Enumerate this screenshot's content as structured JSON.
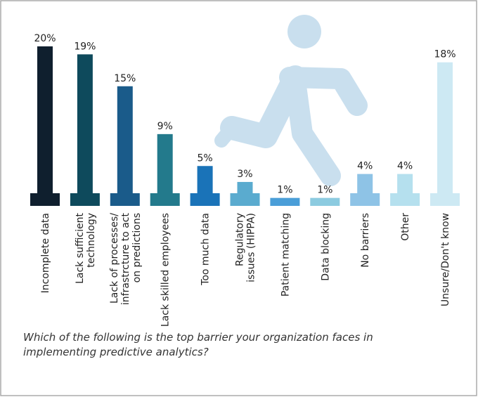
{
  "chart_data": {
    "type": "bar",
    "title": "Which of the following is the top barrier your organization faces in implementing predictive analytics?",
    "categories": [
      [
        "Incomplete data"
      ],
      [
        "Lack sufficient",
        "technology"
      ],
      [
        "Lack of processes/",
        "infrastrcture to act",
        "on predictions"
      ],
      [
        "Lack skilled employees"
      ],
      [
        "Too much data"
      ],
      [
        "Regulatory",
        "issues (HIPPA)"
      ],
      [
        "Patient matching"
      ],
      [
        "Data blocking"
      ],
      [
        "No barriers"
      ],
      [
        "Other"
      ],
      [
        "Unsure/Don't know"
      ]
    ],
    "values": [
      20,
      19,
      15,
      9,
      5,
      3,
      1,
      1,
      4,
      4,
      18
    ],
    "value_labels": [
      "20%",
      "19%",
      "15%",
      "9%",
      "5%",
      "3%",
      "1%",
      "1%",
      "4%",
      "4%",
      "18%"
    ],
    "colors": [
      "#0f1f2e",
      "#0e4a5c",
      "#1a5b8a",
      "#237a8c",
      "#1a73b8",
      "#5aabcf",
      "#4a9ed8",
      "#8ccbe0",
      "#8ec3e6",
      "#b5e0ee",
      "#cde9f3"
    ]
  }
}
